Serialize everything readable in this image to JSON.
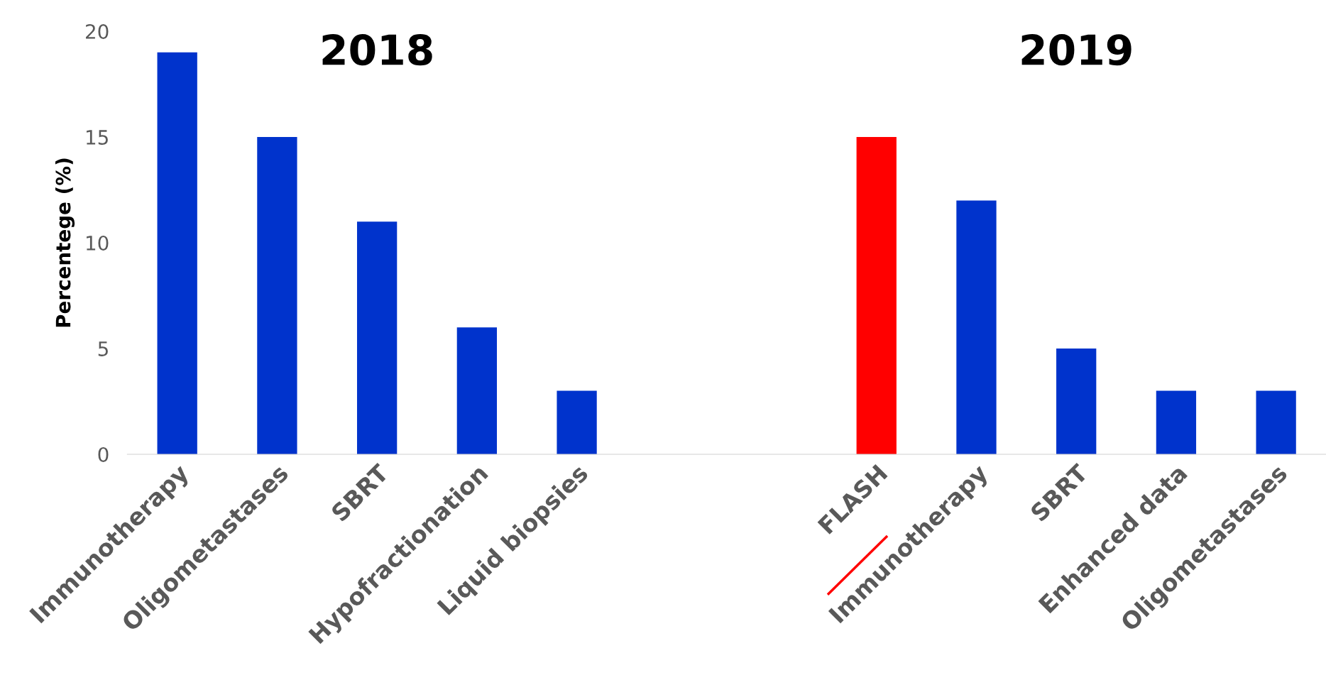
{
  "chart_data": {
    "type": "bar",
    "ylabel": "Percentege (%)",
    "annotations": [
      "2018",
      "2019"
    ],
    "categories": [
      "Immunotherapy",
      "Oligometastases",
      "SBRT",
      "Hypofractionation",
      "Liquid biopsies",
      null,
      null,
      "FLASH",
      "Immunotherapy",
      "SBRT",
      "Enhanced data",
      "Oligometastases"
    ],
    "values": [
      19,
      15,
      11,
      6,
      3,
      null,
      null,
      15,
      12,
      5,
      3,
      3
    ],
    "colors": [
      "#0033cc",
      "#0033cc",
      "#0033cc",
      "#0033cc",
      "#0033cc",
      null,
      null,
      "#ff0000",
      "#0033cc",
      "#0033cc",
      "#0033cc",
      "#0033cc"
    ],
    "ylim": [
      0,
      20
    ],
    "yticks": [
      0,
      5,
      10,
      15,
      20
    ],
    "grid": false,
    "legend": false
  }
}
